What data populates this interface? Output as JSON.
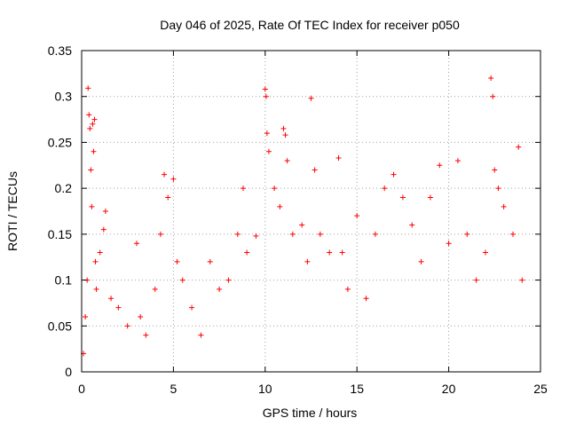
{
  "chart_data": {
    "type": "scatter",
    "title": "Day 046 of 2025, Rate Of TEC Index for receiver p050",
    "xlabel": "GPS time / hours",
    "ylabel": "ROTI / TECUs",
    "xlim": [
      0,
      25
    ],
    "ylim": [
      0,
      0.35
    ],
    "xticks": [
      0,
      5,
      10,
      15,
      20,
      25
    ],
    "xtick_labels": [
      "0",
      "5",
      "10",
      "15",
      "20",
      "25"
    ],
    "yticks": [
      0,
      0.05,
      0.1,
      0.15,
      0.2,
      0.25,
      0.3,
      0.35
    ],
    "ytick_labels": [
      "0",
      "0.05",
      "0.1",
      "0.15",
      "0.2",
      "0.25",
      "0.3",
      "0.35"
    ],
    "grid": true,
    "marker": "+",
    "color": "#ff0000",
    "series": [
      {
        "name": "ROTI",
        "points": [
          [
            0.1,
            0.02
          ],
          [
            0.2,
            0.06
          ],
          [
            0.3,
            0.1
          ],
          [
            0.35,
            0.309
          ],
          [
            0.4,
            0.28
          ],
          [
            0.45,
            0.265
          ],
          [
            0.5,
            0.22
          ],
          [
            0.55,
            0.18
          ],
          [
            0.6,
            0.27
          ],
          [
            0.65,
            0.24
          ],
          [
            0.7,
            0.275
          ],
          [
            0.75,
            0.12
          ],
          [
            0.8,
            0.09
          ],
          [
            1.0,
            0.13
          ],
          [
            1.2,
            0.155
          ],
          [
            1.3,
            0.175
          ],
          [
            1.6,
            0.08
          ],
          [
            2.0,
            0.07
          ],
          [
            2.5,
            0.05
          ],
          [
            3.0,
            0.14
          ],
          [
            3.2,
            0.06
          ],
          [
            3.5,
            0.04
          ],
          [
            4.0,
            0.09
          ],
          [
            4.3,
            0.15
          ],
          [
            4.5,
            0.215
          ],
          [
            4.7,
            0.19
          ],
          [
            5.0,
            0.21
          ],
          [
            5.2,
            0.12
          ],
          [
            5.5,
            0.1
          ],
          [
            6.0,
            0.07
          ],
          [
            6.5,
            0.04
          ],
          [
            7.0,
            0.12
          ],
          [
            7.5,
            0.09
          ],
          [
            8.0,
            0.1
          ],
          [
            8.5,
            0.15
          ],
          [
            8.8,
            0.2
          ],
          [
            9.0,
            0.13
          ],
          [
            9.5,
            0.148
          ],
          [
            10.0,
            0.308
          ],
          [
            10.05,
            0.3
          ],
          [
            10.1,
            0.26
          ],
          [
            10.2,
            0.24
          ],
          [
            10.5,
            0.2
          ],
          [
            10.8,
            0.18
          ],
          [
            11.0,
            0.265
          ],
          [
            11.1,
            0.258
          ],
          [
            11.2,
            0.23
          ],
          [
            11.5,
            0.15
          ],
          [
            12.0,
            0.16
          ],
          [
            12.3,
            0.12
          ],
          [
            12.5,
            0.298
          ],
          [
            12.7,
            0.22
          ],
          [
            13.0,
            0.15
          ],
          [
            13.5,
            0.13
          ],
          [
            14.0,
            0.233
          ],
          [
            14.2,
            0.13
          ],
          [
            14.5,
            0.09
          ],
          [
            15.0,
            0.17
          ],
          [
            15.5,
            0.08
          ],
          [
            16.0,
            0.15
          ],
          [
            16.5,
            0.2
          ],
          [
            17.0,
            0.215
          ],
          [
            17.5,
            0.19
          ],
          [
            18.0,
            0.16
          ],
          [
            18.5,
            0.12
          ],
          [
            19.0,
            0.19
          ],
          [
            19.5,
            0.225
          ],
          [
            20.0,
            0.14
          ],
          [
            20.5,
            0.23
          ],
          [
            21.0,
            0.15
          ],
          [
            21.5,
            0.1
          ],
          [
            22.0,
            0.13
          ],
          [
            22.3,
            0.32
          ],
          [
            22.4,
            0.3
          ],
          [
            22.5,
            0.22
          ],
          [
            22.7,
            0.2
          ],
          [
            23.0,
            0.18
          ],
          [
            23.5,
            0.15
          ],
          [
            23.8,
            0.245
          ],
          [
            24.0,
            0.1
          ]
        ]
      }
    ]
  }
}
